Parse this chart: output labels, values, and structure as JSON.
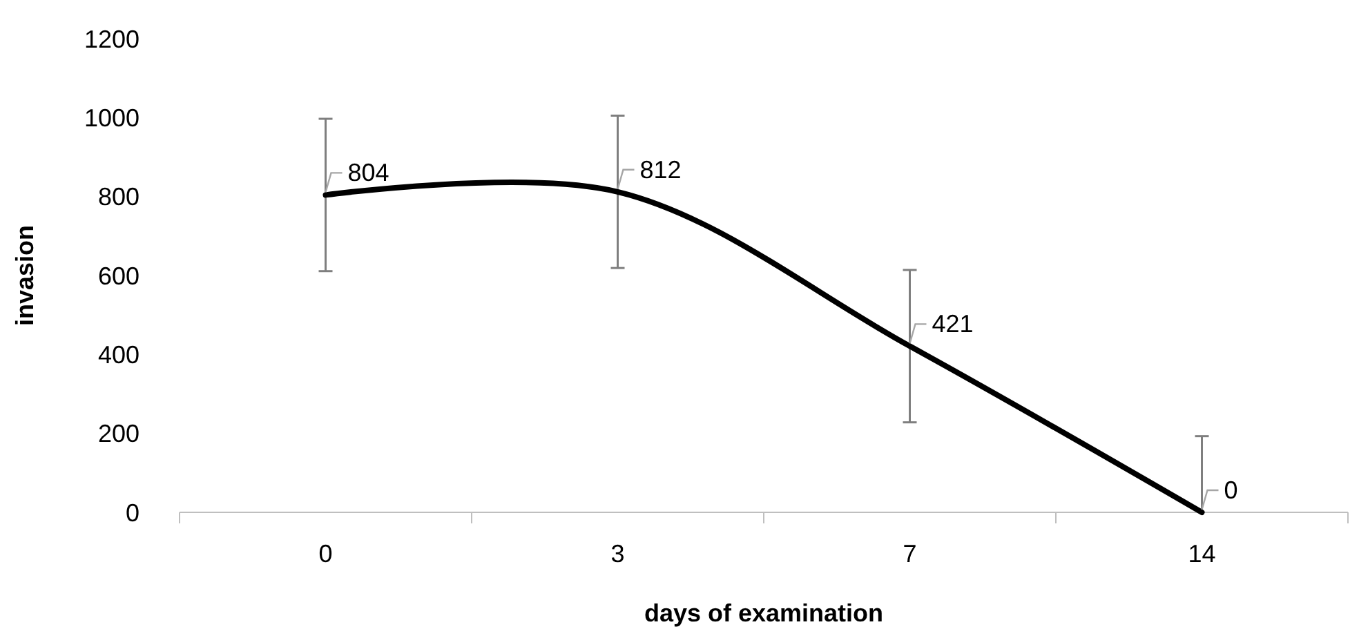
{
  "chart_data": {
    "type": "line",
    "xlabel": "days of examination",
    "ylabel": "invasion",
    "categories": [
      "0",
      "3",
      "7",
      "14"
    ],
    "series": [
      {
        "color": "#000000",
        "values": [
          804,
          812,
          421,
          0
        ],
        "errors": [
          193,
          193,
          193,
          [
            0,
            193
          ]
        ]
      }
    ],
    "ylim": [
      0,
      1200
    ],
    "yticks": [
      0,
      200,
      400,
      600,
      800,
      1000,
      1200
    ],
    "data_labels": true,
    "grid": false,
    "marker": "none",
    "line_style": "solid"
  }
}
